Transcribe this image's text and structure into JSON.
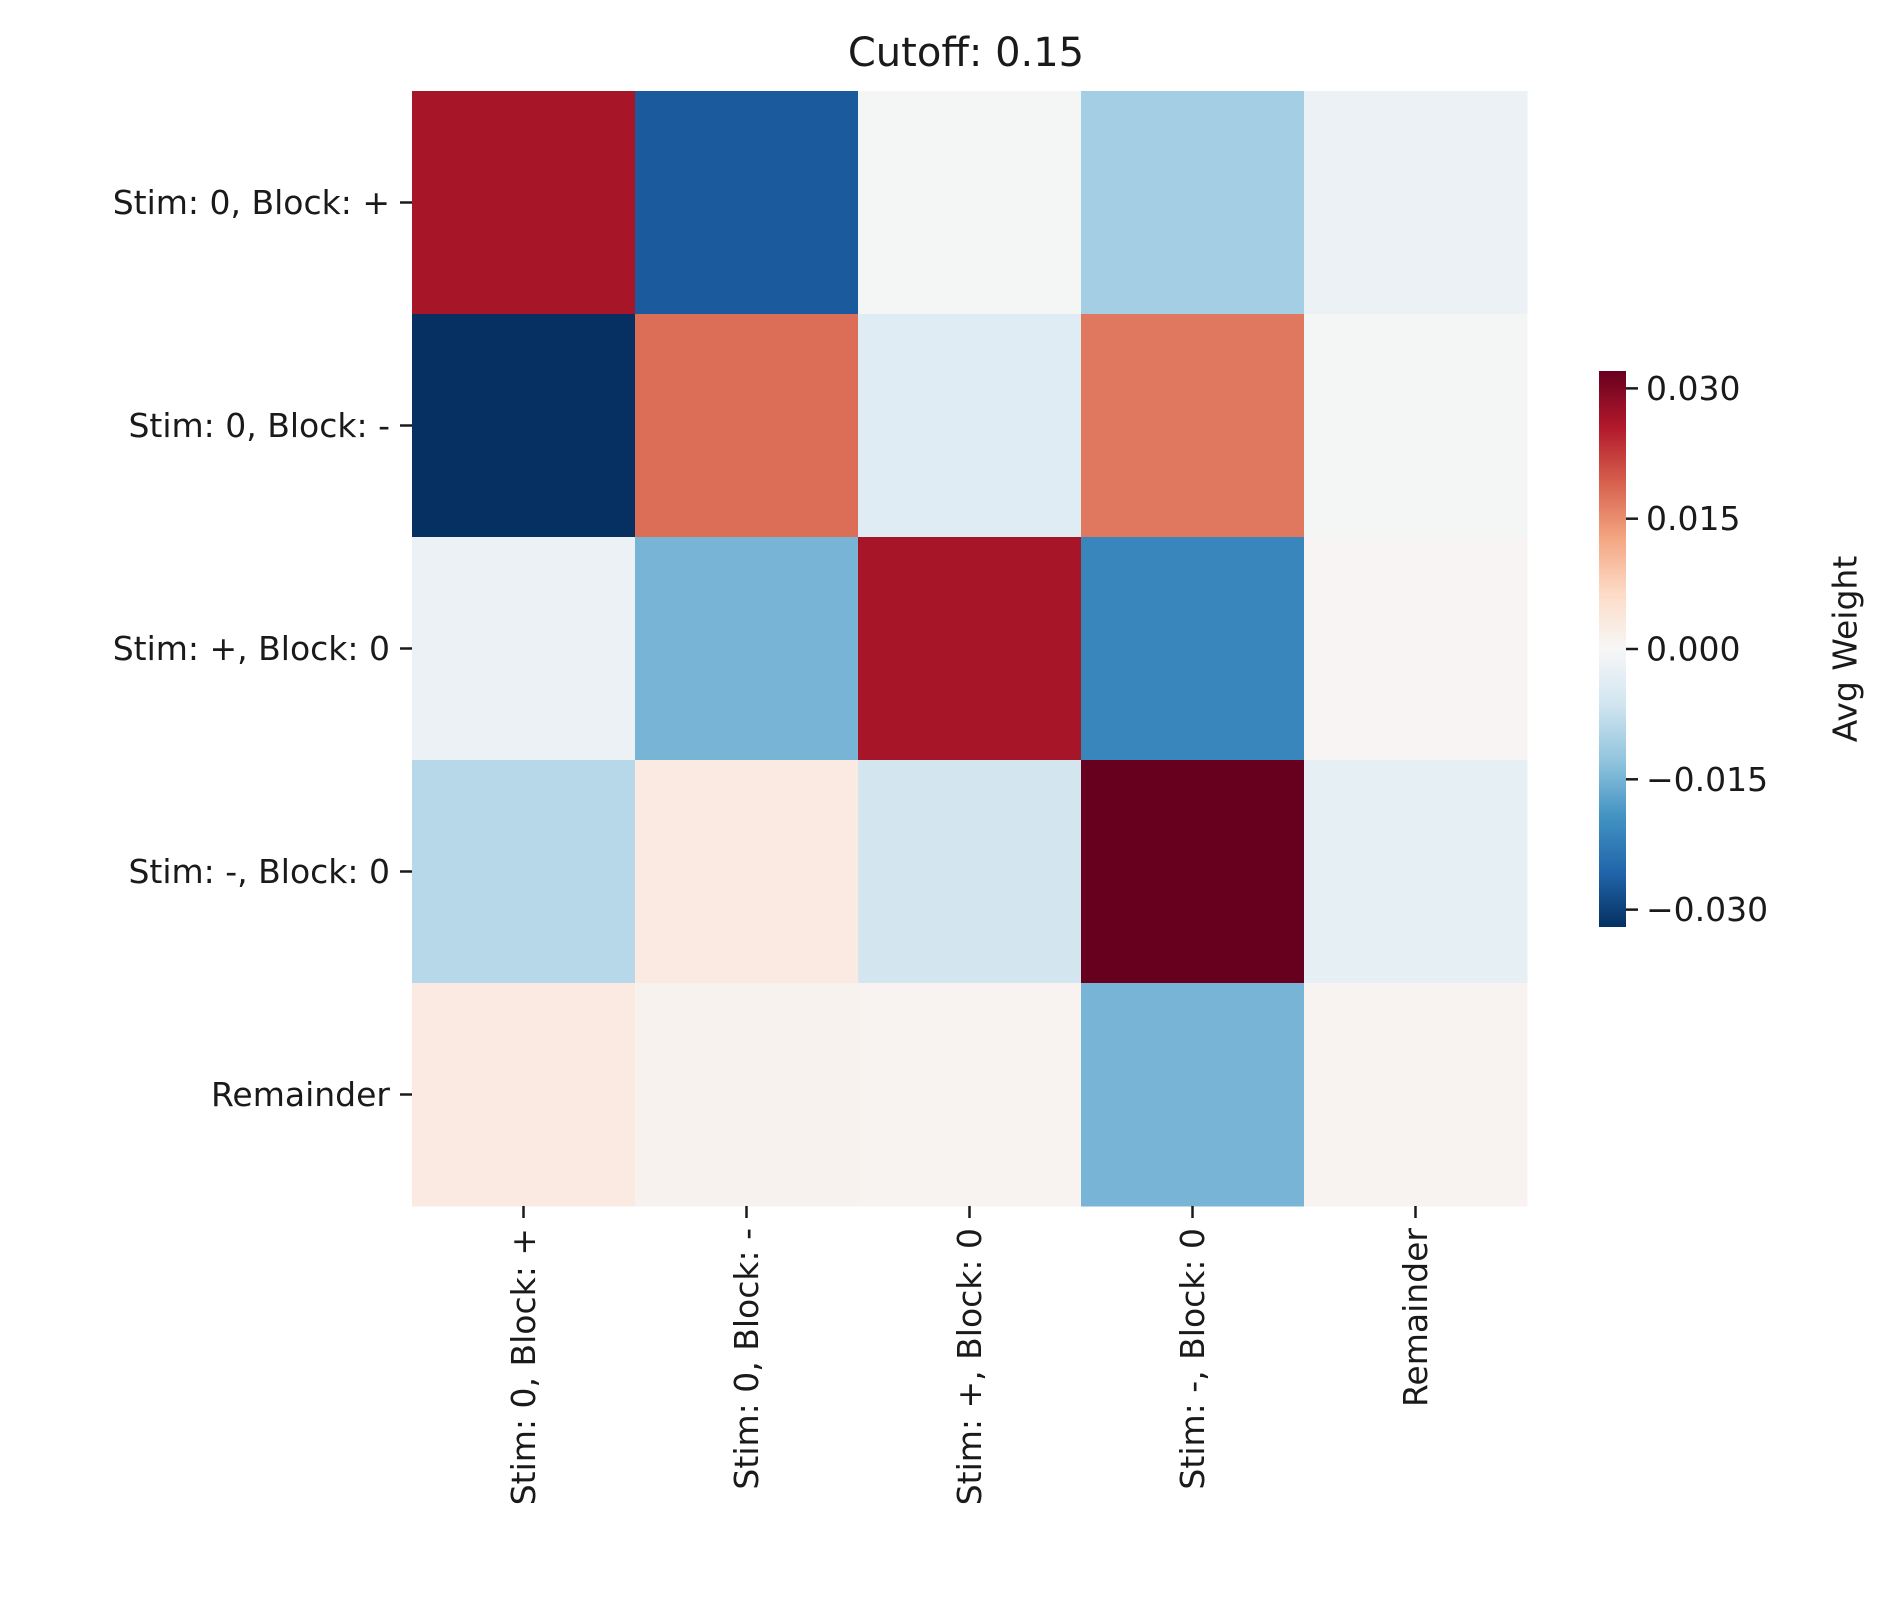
{
  "chart_data": {
    "type": "heatmap",
    "title": "Cutoff: 0.15",
    "rows": [
      "Stim: 0, Block: +",
      "Stim: 0, Block: -",
      "Stim: +, Block: 0",
      "Stim: -, Block: 0",
      "Remainder"
    ],
    "columns": [
      "Stim: 0, Block: +",
      "Stim: 0, Block: -",
      "Stim: +, Block: 0",
      "Stim: -, Block: 0",
      "Remainder"
    ],
    "values": [
      [
        0.0265,
        -0.027,
        -0.0005,
        -0.011,
        -0.002
      ],
      [
        -0.032,
        0.018,
        -0.004,
        0.017,
        -0.0005
      ],
      [
        -0.002,
        -0.015,
        0.0265,
        -0.021,
        0.0006
      ],
      [
        -0.009,
        0.003,
        -0.006,
        0.032,
        -0.003
      ],
      [
        0.003,
        0.0012,
        0.0008,
        -0.015,
        0.001
      ]
    ],
    "colorbar": {
      "label": "Avg Weight",
      "vmin": -0.032,
      "vmax": 0.032,
      "ticks": [
        0.03,
        0.015,
        0.0,
        -0.015,
        -0.03
      ],
      "tick_labels": [
        "0.030",
        "0.015",
        "0.000",
        "−0.015",
        "−0.030"
      ],
      "colormap": "RdBu_r"
    }
  }
}
